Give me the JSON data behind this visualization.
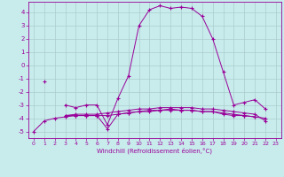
{
  "xlabel": "Windchill (Refroidissement éolien,°C)",
  "xlim": [
    -0.5,
    23.5
  ],
  "ylim": [
    -5.5,
    4.8
  ],
  "xticks": [
    0,
    1,
    2,
    3,
    4,
    5,
    6,
    7,
    8,
    9,
    10,
    11,
    12,
    13,
    14,
    15,
    16,
    17,
    18,
    19,
    20,
    21,
    22,
    23
  ],
  "yticks": [
    -5,
    -4,
    -3,
    -2,
    -1,
    0,
    1,
    2,
    3,
    4
  ],
  "background_color": "#c8ecec",
  "line_color": "#990099",
  "grid_color": "#aacccc",
  "series": [
    [
      null,
      -1.2,
      null,
      -3.0,
      -3.2,
      -3.0,
      -3.0,
      -4.5,
      -2.5,
      -0.8,
      3.0,
      4.2,
      4.5,
      4.3,
      4.4,
      4.3,
      3.7,
      2.0,
      -0.5,
      -3.0,
      -2.8,
      -2.6,
      -3.3,
      null
    ],
    [
      null,
      null,
      null,
      -3.8,
      -3.8,
      -3.8,
      -3.8,
      -3.8,
      -3.7,
      -3.6,
      -3.5,
      -3.5,
      -3.4,
      -3.4,
      -3.4,
      -3.4,
      -3.5,
      -3.5,
      -3.6,
      -3.7,
      -3.8,
      -3.9,
      null,
      null
    ],
    [
      -5.0,
      -4.2,
      -4.0,
      -3.9,
      -3.8,
      -3.8,
      -3.8,
      -4.8,
      -3.7,
      -3.6,
      -3.5,
      -3.4,
      -3.4,
      -3.3,
      -3.4,
      -3.4,
      -3.5,
      -3.5,
      -3.7,
      -3.8,
      -3.8,
      -3.9,
      -4.0,
      null
    ],
    [
      null,
      null,
      null,
      -3.8,
      -3.7,
      -3.7,
      -3.7,
      -3.6,
      -3.5,
      -3.4,
      -3.3,
      -3.3,
      -3.2,
      -3.2,
      -3.2,
      -3.2,
      -3.3,
      -3.3,
      -3.4,
      -3.5,
      -3.6,
      -3.7,
      -4.2,
      null
    ]
  ]
}
